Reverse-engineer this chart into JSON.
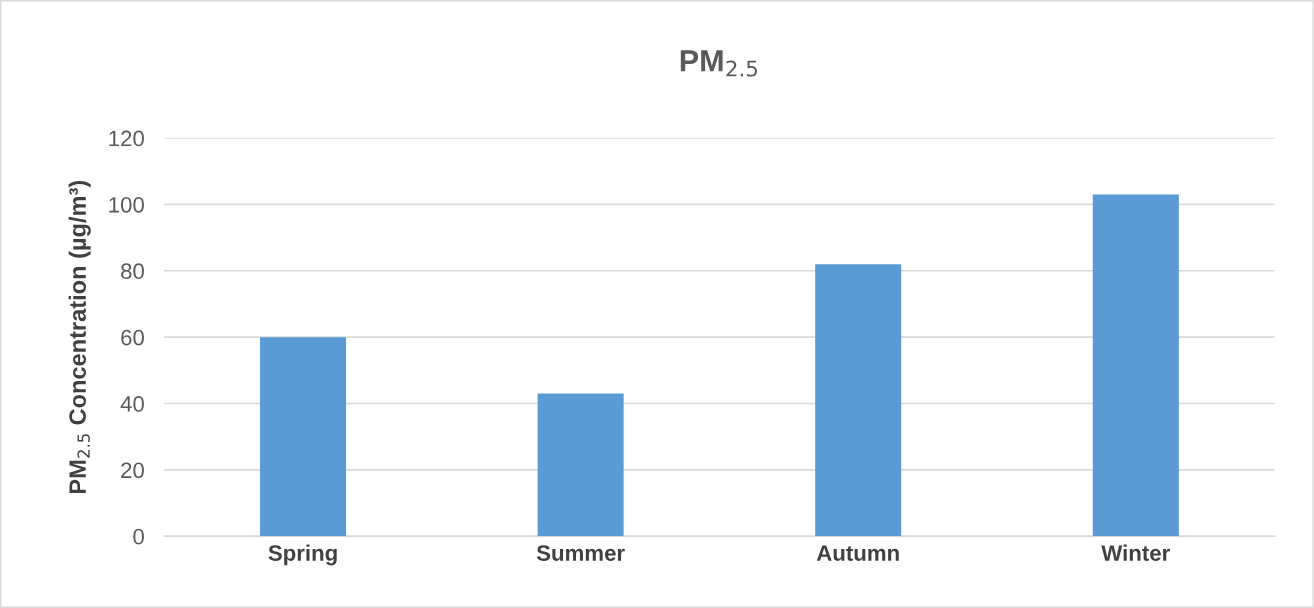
{
  "chart_data": {
    "type": "bar",
    "title": "PM$_{2.5}$",
    "ylabel": "PM$_{2.5}$ Concentration (µg/m³)",
    "categories": [
      "Spring",
      "Summer",
      "Autumn",
      "Winter"
    ],
    "values": [
      60,
      43,
      82,
      103
    ],
    "color": "#5b9bd5",
    "ylim": [
      0,
      120
    ],
    "yticks": [
      0,
      20,
      40,
      60,
      80,
      100,
      120
    ],
    "grid": "y",
    "legend": false
  }
}
